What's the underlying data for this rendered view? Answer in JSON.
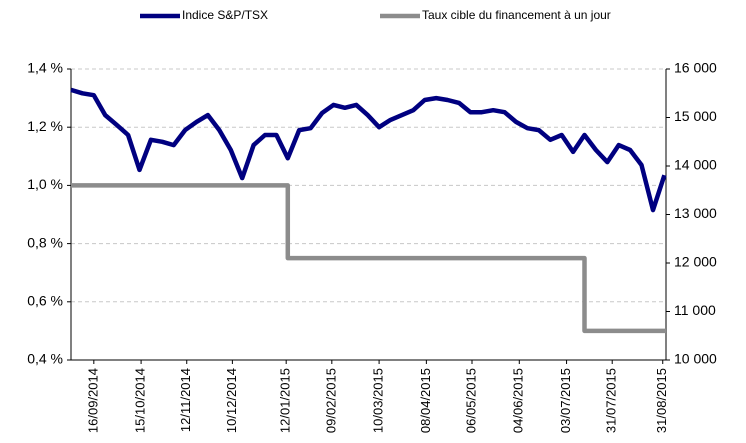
{
  "chart_data": {
    "type": "line",
    "series": [
      {
        "name": "Indice S&P/TSX",
        "color": "#000080",
        "axis": "y2",
        "x": [
          "02/09/2014",
          "09/09/2014",
          "16/09/2014",
          "23/09/2014",
          "30/09/2014",
          "07/10/2014",
          "14/10/2014",
          "21/10/2014",
          "28/10/2014",
          "04/11/2014",
          "11/11/2014",
          "18/11/2014",
          "25/11/2014",
          "02/12/2014",
          "09/12/2014",
          "16/12/2014",
          "23/12/2014",
          "30/12/2014",
          "06/01/2015",
          "13/01/2015",
          "20/01/2015",
          "27/01/2015",
          "03/02/2015",
          "10/02/2015",
          "17/02/2015",
          "24/02/2015",
          "03/03/2015",
          "10/03/2015",
          "17/03/2015",
          "24/03/2015",
          "31/03/2015",
          "07/04/2015",
          "14/04/2015",
          "21/04/2015",
          "28/04/2015",
          "05/05/2015",
          "12/05/2015",
          "19/05/2015",
          "26/05/2015",
          "02/06/2015",
          "09/06/2015",
          "16/06/2015",
          "23/06/2015",
          "30/06/2015",
          "07/07/2015",
          "14/07/2015",
          "21/07/2015",
          "28/07/2015",
          "04/08/2015",
          "11/08/2015",
          "18/08/2015",
          "25/08/2015",
          "01/09/2015"
        ],
        "values": [
          15570,
          15500,
          15460,
          15050,
          14850,
          14640,
          13920,
          14540,
          14500,
          14430,
          14740,
          14910,
          15050,
          14740,
          14330,
          13750,
          14430,
          14640,
          14640,
          14160,
          14740,
          14780,
          15090,
          15260,
          15200,
          15260,
          15050,
          14800,
          14950,
          15050,
          15150,
          15360,
          15400,
          15360,
          15300,
          15110,
          15110,
          15150,
          15110,
          14910,
          14780,
          14740,
          14540,
          14640,
          14290,
          14640,
          14330,
          14080,
          14430,
          14330,
          14020,
          13090,
          13810
        ]
      },
      {
        "name": "Taux cible du financement à un jour",
        "color": "#8c8c8c",
        "axis": "y",
        "x": [
          "02/09/2014",
          "13/01/2015",
          "13/01/2015",
          "14/07/2015",
          "14/07/2015",
          "02/09/2015"
        ],
        "values": [
          1.0,
          1.0,
          0.75,
          0.75,
          0.5,
          0.5
        ]
      }
    ],
    "xlim": [
      "02/09/2014",
      "02/09/2015"
    ],
    "xticks": [
      "16/09/2014",
      "15/10/2014",
      "12/11/2014",
      "10/12/2014",
      "12/01/2015",
      "09/02/2015",
      "10/03/2015",
      "08/04/2015",
      "06/05/2015",
      "04/06/2015",
      "03/07/2015",
      "31/07/2015",
      "31/08/2015"
    ],
    "ylim": [
      0.4,
      1.4
    ],
    "yticks": [
      {
        "value": 0.4,
        "label": "0,4 %"
      },
      {
        "value": 0.6,
        "label": "0,6 %"
      },
      {
        "value": 0.8,
        "label": "0,8 %"
      },
      {
        "value": 1.0,
        "label": "1,0 %"
      },
      {
        "value": 1.2,
        "label": "1,2 %"
      },
      {
        "value": 1.4,
        "label": "1,4 %"
      }
    ],
    "y2lim": [
      10000,
      16000
    ],
    "y2ticks": [
      {
        "value": 10000,
        "label": "10 000"
      },
      {
        "value": 11000,
        "label": "11 000"
      },
      {
        "value": 12000,
        "label": "12 000"
      },
      {
        "value": 13000,
        "label": "13 000"
      },
      {
        "value": 14000,
        "label": "14 000"
      },
      {
        "value": 15000,
        "label": "15 000"
      },
      {
        "value": 16000,
        "label": "16 000"
      }
    ],
    "grid": true,
    "legend": "top"
  }
}
